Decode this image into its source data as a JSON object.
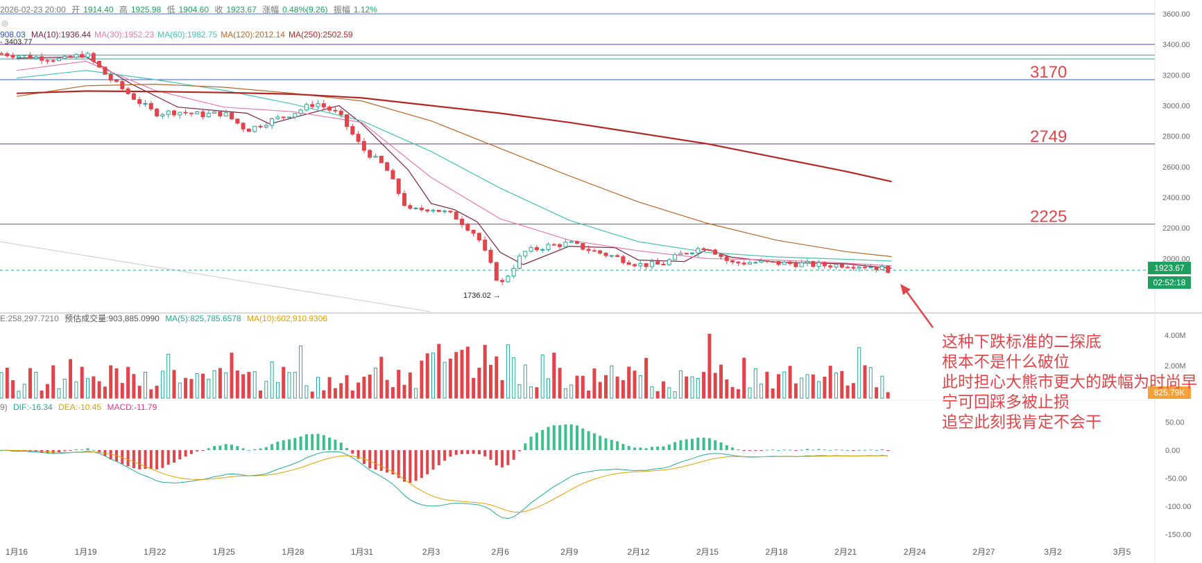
{
  "header": {
    "date": "2026-02-23 20:00",
    "open_label": "开",
    "open": "1914.40",
    "high_label": "高",
    "high": "1925.98",
    "low_label": "低",
    "low": "1904.60",
    "close_label": "收",
    "close": "1923.67",
    "change_label": "涨幅",
    "change": "0.48%(9.26)",
    "amp_label": "振幅",
    "amp": "1.12%"
  },
  "ma_line": {
    "first": "908.03",
    "items": [
      {
        "label": "MA(10):1936.44",
        "color": "#7a1f3d"
      },
      {
        "label": "MA(30):1952.23",
        "color": "#e87aa8"
      },
      {
        "label": "MA(60):1982.75",
        "color": "#45c0b5"
      },
      {
        "label": "MA(120):2012.14",
        "color": "#b5662a"
      },
      {
        "label": "MA(250):2502.59",
        "color": "#b32626"
      }
    ]
  },
  "volume_header": {
    "vol": "E:258,297.7210",
    "est": "预估成交量:903,885.0990",
    "ma5": "MA(5):825,785.6578",
    "ma10": "MA(10):602,910.9306"
  },
  "macd_header": {
    "prefix": "9)",
    "dif": "DIF:-16.34",
    "dea": "DEA:-10.45",
    "macd": "MACD:-11.79"
  },
  "price_tags": {
    "close": "1923.67",
    "countdown": "02:52:18",
    "volume": "825.79K"
  },
  "note_lines": [
    "这种下跌标准的二探底",
    "根本不是什么破位",
    "此时担心大熊市更大的跌幅为时尚早",
    "宁可回踩多被止损",
    "追空此刻我肯定不会干"
  ],
  "colors": {
    "up": "#26a69a",
    "down": "#e0454b",
    "note": "#e0454b"
  },
  "chart_data": {
    "type": "candlestick",
    "price_axis": {
      "ticks": [
        "3600.00",
        "3400.00",
        "3200.00",
        "3000.00",
        "2800.00",
        "2600.00",
        "2400.00",
        "2200.00",
        "2000.00"
      ],
      "ylim": [
        1700,
        3650
      ]
    },
    "volume_axis": {
      "ticks": [
        "4.00M",
        "2.00M"
      ]
    },
    "macd_axis": {
      "ticks": [
        "50.00",
        "0.00",
        "-50.00",
        "-100.00",
        "-150.00"
      ]
    },
    "x_ticks": [
      "1月16",
      "1月19",
      "1月22",
      "1月25",
      "1月28",
      "1月31",
      "2月3",
      "2月6",
      "2月9",
      "2月12",
      "2月15",
      "2月18",
      "2月21",
      "2月24",
      "2月27",
      "3月2",
      "3月5"
    ],
    "x_range": [
      "2026-01-16",
      "2026-03-06"
    ],
    "horizontal_levels": [
      {
        "value": 3600,
        "label": ""
      },
      {
        "value": 3400,
        "label": ""
      },
      {
        "value": 3170,
        "label": "3170"
      },
      {
        "value": 2749,
        "label": "2749"
      },
      {
        "value": 2225,
        "label": "2225"
      }
    ],
    "annotations": [
      {
        "text": "3403.77",
        "type": "high"
      },
      {
        "text": "1736.02",
        "type": "low"
      }
    ],
    "price_path": [
      [
        "2026-01-16",
        3330
      ],
      [
        "2026-01-18",
        3300
      ],
      [
        "2026-01-19",
        3340
      ],
      [
        "2026-01-20",
        3180
      ],
      [
        "2026-01-21",
        3060
      ],
      [
        "2026-01-22",
        2950
      ],
      [
        "2026-01-23",
        2960
      ],
      [
        "2026-01-24",
        2940
      ],
      [
        "2026-01-25",
        2950
      ],
      [
        "2026-01-26",
        2840
      ],
      [
        "2026-01-27",
        2900
      ],
      [
        "2026-01-28",
        2950
      ],
      [
        "2026-01-29",
        3020
      ],
      [
        "2026-01-30",
        2940
      ],
      [
        "2026-01-31",
        2720
      ],
      [
        "2026-02-01",
        2600
      ],
      [
        "2026-02-02",
        2310
      ],
      [
        "2026-02-03",
        2330
      ],
      [
        "2026-02-04",
        2280
      ],
      [
        "2026-02-05",
        2150
      ],
      [
        "2026-02-06",
        1820
      ],
      [
        "2026-02-07",
        2040
      ],
      [
        "2026-02-08",
        2080
      ],
      [
        "2026-02-09",
        2100
      ],
      [
        "2026-02-10",
        2050
      ],
      [
        "2026-02-11",
        2010
      ],
      [
        "2026-02-12",
        1960
      ],
      [
        "2026-02-13",
        1960
      ],
      [
        "2026-02-14",
        2040
      ],
      [
        "2026-02-15",
        2080
      ],
      [
        "2026-02-16",
        1970
      ],
      [
        "2026-02-17",
        1975
      ],
      [
        "2026-02-18",
        1970
      ],
      [
        "2026-02-19",
        1965
      ],
      [
        "2026-02-20",
        1955
      ],
      [
        "2026-02-21",
        1960
      ],
      [
        "2026-02-22",
        1950
      ],
      [
        "2026-02-23",
        1923.67
      ]
    ],
    "series": [
      {
        "name": "MA(10)",
        "color": "#7a1f3d",
        "points": [
          [
            "2026-01-16",
            3310
          ],
          [
            "2026-01-19",
            3320
          ],
          [
            "2026-01-21",
            3140
          ],
          [
            "2026-01-23",
            2990
          ],
          [
            "2026-01-26",
            2950
          ],
          [
            "2026-01-27",
            2880
          ],
          [
            "2026-01-28",
            2920
          ],
          [
            "2026-01-30",
            3000
          ],
          [
            "2026-01-31",
            2880
          ],
          [
            "2026-02-02",
            2580
          ],
          [
            "2026-02-03",
            2360
          ],
          [
            "2026-02-04",
            2320
          ],
          [
            "2026-02-05",
            2240
          ],
          [
            "2026-02-06",
            2040
          ],
          [
            "2026-02-07",
            1960
          ],
          [
            "2026-02-09",
            2080
          ],
          [
            "2026-02-11",
            2070
          ],
          [
            "2026-02-12",
            1990
          ],
          [
            "2026-02-14",
            1980
          ],
          [
            "2026-02-15",
            2060
          ],
          [
            "2026-02-16",
            2010
          ],
          [
            "2026-02-18",
            1975
          ],
          [
            "2026-02-21",
            1965
          ],
          [
            "2026-02-23",
            1936
          ]
        ]
      },
      {
        "name": "MA(30)",
        "color": "#e87aa8",
        "points": [
          [
            "2026-01-16",
            3230
          ],
          [
            "2026-01-19",
            3290
          ],
          [
            "2026-01-22",
            3100
          ],
          [
            "2026-01-25",
            2990
          ],
          [
            "2026-01-28",
            2960
          ],
          [
            "2026-01-31",
            2890
          ],
          [
            "2026-02-03",
            2530
          ],
          [
            "2026-02-06",
            2260
          ],
          [
            "2026-02-09",
            2120
          ],
          [
            "2026-02-12",
            2050
          ],
          [
            "2026-02-15",
            2000
          ],
          [
            "2026-02-18",
            1990
          ],
          [
            "2026-02-21",
            1970
          ],
          [
            "2026-02-23",
            1952
          ]
        ]
      },
      {
        "name": "MA(60)",
        "color": "#45c0b5",
        "points": [
          [
            "2026-01-16",
            3180
          ],
          [
            "2026-01-19",
            3230
          ],
          [
            "2026-01-22",
            3170
          ],
          [
            "2026-01-25",
            3100
          ],
          [
            "2026-01-28",
            3010
          ],
          [
            "2026-01-31",
            2900
          ],
          [
            "2026-02-03",
            2700
          ],
          [
            "2026-02-06",
            2460
          ],
          [
            "2026-02-09",
            2250
          ],
          [
            "2026-02-12",
            2110
          ],
          [
            "2026-02-15",
            2040
          ],
          [
            "2026-02-18",
            2010
          ],
          [
            "2026-02-21",
            1995
          ],
          [
            "2026-02-23",
            1983
          ]
        ]
      },
      {
        "name": "MA(120)",
        "color": "#b5662a",
        "points": [
          [
            "2026-01-16",
            3060
          ],
          [
            "2026-01-19",
            3130
          ],
          [
            "2026-01-22",
            3140
          ],
          [
            "2026-01-25",
            3120
          ],
          [
            "2026-01-28",
            3080
          ],
          [
            "2026-01-31",
            3030
          ],
          [
            "2026-02-03",
            2900
          ],
          [
            "2026-02-06",
            2720
          ],
          [
            "2026-02-09",
            2540
          ],
          [
            "2026-02-12",
            2370
          ],
          [
            "2026-02-15",
            2230
          ],
          [
            "2026-02-18",
            2120
          ],
          [
            "2026-02-21",
            2045
          ],
          [
            "2026-02-23",
            2012
          ]
        ]
      },
      {
        "name": "MA(250)",
        "color": "#b32626",
        "points": [
          [
            "2026-01-16",
            3080
          ],
          [
            "2026-01-19",
            3095
          ],
          [
            "2026-01-22",
            3092
          ],
          [
            "2026-01-25",
            3085
          ],
          [
            "2026-01-28",
            3075
          ],
          [
            "2026-01-31",
            3050
          ],
          [
            "2026-02-03",
            3000
          ],
          [
            "2026-02-06",
            2950
          ],
          [
            "2026-02-09",
            2890
          ],
          [
            "2026-02-12",
            2820
          ],
          [
            "2026-02-15",
            2750
          ],
          [
            "2026-02-18",
            2660
          ],
          [
            "2026-02-21",
            2570
          ],
          [
            "2026-02-23",
            2503
          ]
        ]
      }
    ]
  }
}
